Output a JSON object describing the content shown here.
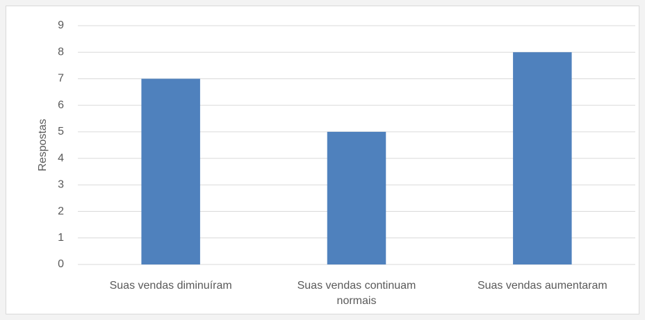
{
  "chart_data": {
    "type": "bar",
    "y_label": "Respostas",
    "categories": [
      "Suas vendas diminuíram",
      "Suas vendas continuam normais",
      "Suas vendas aumentaram"
    ],
    "values": [
      7,
      5,
      8
    ],
    "color": "#4f81bd",
    "ylim": [
      0,
      9
    ],
    "yticks": [
      0,
      1,
      2,
      3,
      4,
      5,
      6,
      7,
      8,
      9
    ],
    "grid": true
  }
}
